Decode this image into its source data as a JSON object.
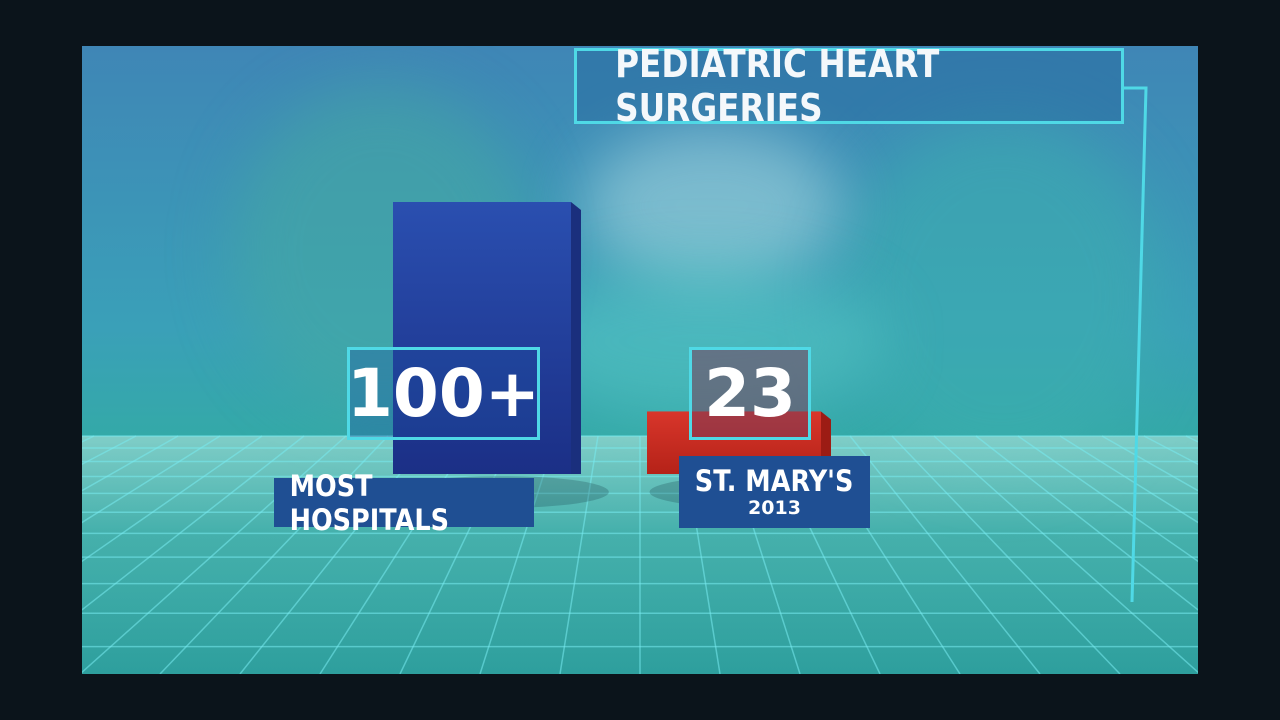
{
  "chart_data": {
    "type": "bar",
    "title": "PEDIATRIC HEART SURGERIES",
    "categories": [
      "MOST HOSPITALS",
      "ST. MARY'S"
    ],
    "category_sublabels": [
      "",
      "2013"
    ],
    "value_labels": [
      "100+",
      "23"
    ],
    "values": [
      100,
      23
    ],
    "colors": [
      "#2a4fb0",
      "#d8362b"
    ]
  }
}
